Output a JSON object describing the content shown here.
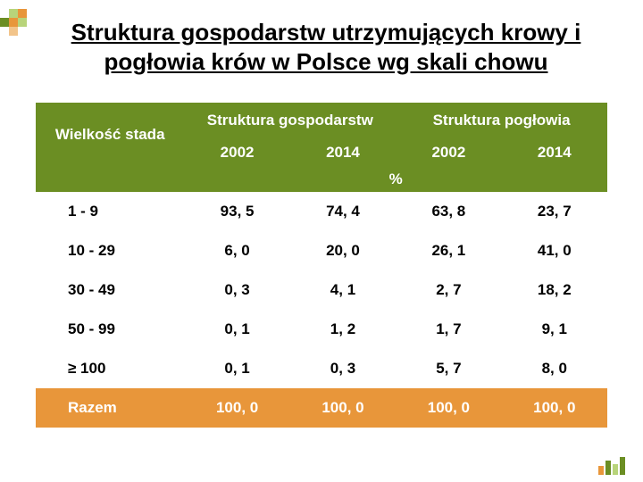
{
  "decor": {
    "corner_colors": [
      "#6b8e23",
      "#b8d47a",
      "#e8963a",
      "#f2c48a"
    ],
    "footer_bars": [
      {
        "h": 10,
        "color": "#e8963a"
      },
      {
        "h": 16,
        "color": "#6b8e23"
      },
      {
        "h": 12,
        "color": "#b8d47a"
      },
      {
        "h": 20,
        "color": "#6b8e23"
      }
    ]
  },
  "title": "Struktura gospodarstw utrzymujących krowy i pogłowia krów w Polsce wg skali chowu",
  "table": {
    "header_bg": "#6b8e23",
    "header_fg": "#ffffff",
    "total_bg": "#e8963a",
    "total_fg": "#ffffff",
    "col1_header": "Wielkość stada",
    "group_headers": [
      "Struktura gospodarstw",
      "Struktura pogłowia"
    ],
    "year_headers": [
      "2002",
      "2014",
      "2002",
      "2014"
    ],
    "unit_row": "%",
    "rows": [
      {
        "label": "1 - 9",
        "v": [
          "93, 5",
          "74, 4",
          "63, 8",
          "23, 7"
        ]
      },
      {
        "label": "10 - 29",
        "v": [
          "6, 0",
          "20, 0",
          "26, 1",
          "41, 0"
        ]
      },
      {
        "label": "30 - 49",
        "v": [
          "0, 3",
          "4, 1",
          "2, 7",
          "18, 2"
        ]
      },
      {
        "label": "50 - 99",
        "v": [
          "0, 1",
          "1, 2",
          "1, 7",
          "9, 1"
        ]
      },
      {
        "label": "≥ 100",
        "v": [
          "0, 1",
          "0, 3",
          "5, 7",
          "8, 0"
        ]
      }
    ],
    "total": {
      "label": "Razem",
      "v": [
        "100, 0",
        "100, 0",
        "100, 0",
        "100, 0"
      ]
    }
  }
}
